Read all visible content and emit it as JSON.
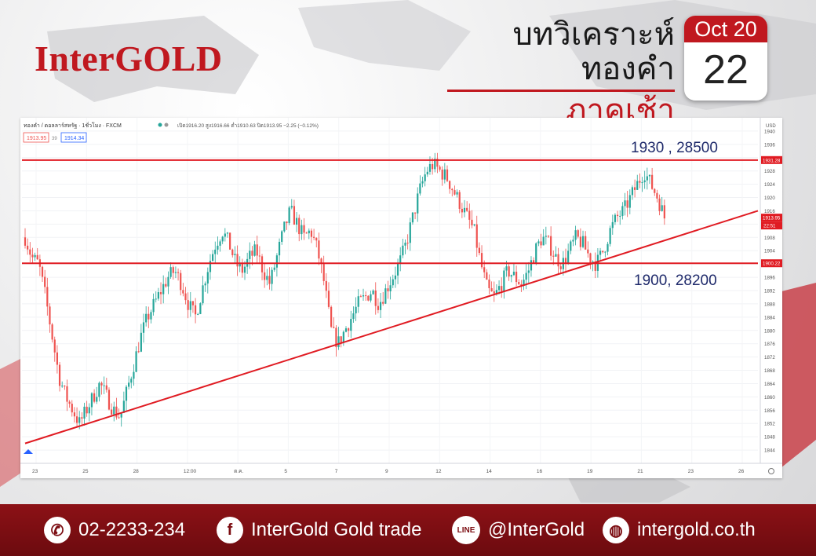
{
  "brand": {
    "logo": "InterGOLD"
  },
  "header": {
    "title_line1": "บทวิเคราะห์ทองคำ",
    "title_line2": "ภาคเช้า"
  },
  "calendar": {
    "month_year": "Oct 20",
    "day": "22"
  },
  "chart_legend": {
    "symbol": "ทองคำ / ดอลลาร์สหรัฐ · 1ชั่วโมง · FXCM",
    "ohlc": "เปิด1916.20 สูง1916.66 ต่ำ1910.63 ปิด1913.95 −2.25 (−0.12%)",
    "bid": "1913.95",
    "spread": "39",
    "ask": "1914.34"
  },
  "colors": {
    "up": "#26a69a",
    "down": "#ef5350",
    "level": "#e01b22",
    "brand_red": "#c0181f",
    "footer": "#7c0d12"
  },
  "chart_data": {
    "type": "candlestick",
    "currency": "USD",
    "ylim": [
      1840,
      1944
    ],
    "yticks": [
      1940,
      1936,
      1932,
      1928,
      1924,
      1920,
      1916,
      1912,
      1908,
      1904,
      1900,
      1896,
      1892,
      1888,
      1884,
      1880,
      1876,
      1872,
      1868,
      1864,
      1860,
      1856,
      1852,
      1848,
      1844
    ],
    "xticks": [
      "23",
      "25",
      "28",
      "12:00",
      "ต.ค.",
      "5",
      "7",
      "9",
      "12",
      "14",
      "16",
      "19",
      "21",
      "23",
      "26"
    ],
    "close_path": [
      1908,
      1902,
      1900,
      1890,
      1878,
      1866,
      1860,
      1856,
      1852,
      1856,
      1860,
      1864,
      1860,
      1856,
      1854,
      1862,
      1870,
      1878,
      1884,
      1888,
      1892,
      1896,
      1898,
      1894,
      1888,
      1884,
      1892,
      1900,
      1906,
      1910,
      1906,
      1900,
      1898,
      1902,
      1904,
      1898,
      1894,
      1902,
      1910,
      1916,
      1912,
      1908,
      1910,
      1904,
      1894,
      1880,
      1876,
      1880,
      1884,
      1888,
      1890,
      1892,
      1888,
      1892,
      1896,
      1900,
      1906,
      1914,
      1922,
      1928,
      1930,
      1928,
      1926,
      1922,
      1918,
      1914,
      1910,
      1900,
      1892,
      1890,
      1894,
      1898,
      1896,
      1894,
      1898,
      1904,
      1908,
      1906,
      1902,
      1900,
      1904,
      1908,
      1906,
      1902,
      1900,
      1904,
      1910,
      1914,
      1916,
      1920,
      1924,
      1928,
      1924,
      1920,
      1914
    ],
    "price_labels": [
      {
        "value": 1931.28
      },
      {
        "value": 1913.95
      },
      {
        "value": 1900.22
      }
    ],
    "countdown_label": "22:51",
    "horizontal_levels": [
      {
        "value": 1931.28,
        "text": "1930 , 28500"
      },
      {
        "value": 1900.22,
        "text": "1900, 28200"
      }
    ],
    "trendline": {
      "from": [
        0,
        1846
      ],
      "to": [
        95,
        1910
      ]
    }
  },
  "footer": {
    "phone": "02-2233-234",
    "facebook": "InterGold Gold trade",
    "line_id": "@InterGold",
    "website": "intergold.co.th",
    "line_badge": "LINE"
  }
}
